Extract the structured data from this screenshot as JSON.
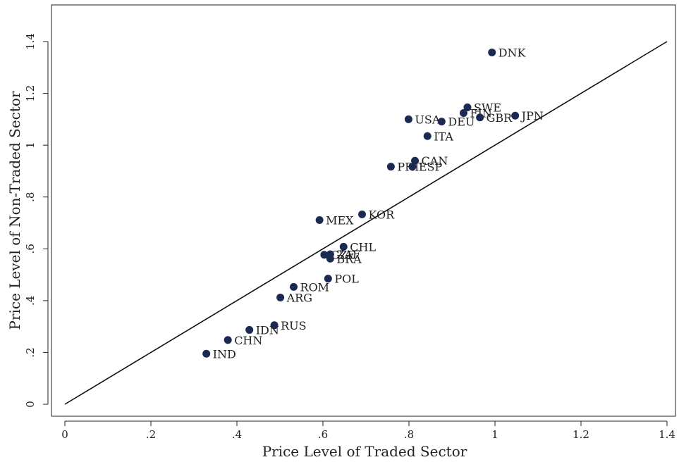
{
  "chart_data": {
    "type": "scatter",
    "title": "",
    "xlabel": "Price Level of Traded Sector",
    "ylabel": "Price Level of Non-Traded Sector",
    "xlim": [
      0,
      1.4
    ],
    "ylim": [
      0,
      1.4
    ],
    "xticks": [
      {
        "value": 0,
        "label": "0"
      },
      {
        "value": 0.2,
        "label": ".2"
      },
      {
        "value": 0.4,
        "label": ".4"
      },
      {
        "value": 0.6,
        "label": ".6"
      },
      {
        "value": 0.8,
        "label": ".8"
      },
      {
        "value": 1.0,
        "label": "1"
      },
      {
        "value": 1.2,
        "label": "1.2"
      },
      {
        "value": 1.4,
        "label": "1.4"
      }
    ],
    "yticks": [
      {
        "value": 0,
        "label": "0"
      },
      {
        "value": 0.2,
        "label": ".2"
      },
      {
        "value": 0.4,
        "label": ".4"
      },
      {
        "value": 0.6,
        "label": ".6"
      },
      {
        "value": 0.8,
        "label": ".8"
      },
      {
        "value": 1.0,
        "label": "1"
      },
      {
        "value": 1.2,
        "label": "1.2"
      },
      {
        "value": 1.4,
        "label": "1.4"
      }
    ],
    "reference_line": {
      "from": [
        0,
        0
      ],
      "to": [
        1.4,
        1.4
      ]
    },
    "grid": false,
    "marker_color": "#1a2a52",
    "points": [
      {
        "label": "DNK",
        "x": 0.993,
        "y": 1.358
      },
      {
        "label": "SWE",
        "x": 0.936,
        "y": 1.146
      },
      {
        "label": "FIN",
        "x": 0.927,
        "y": 1.124
      },
      {
        "label": "GBR",
        "x": 0.965,
        "y": 1.107
      },
      {
        "label": "JPN",
        "x": 1.047,
        "y": 1.114
      },
      {
        "label": "USA",
        "x": 0.799,
        "y": 1.1
      },
      {
        "label": "DEU",
        "x": 0.876,
        "y": 1.091
      },
      {
        "label": "ITA",
        "x": 0.843,
        "y": 1.035
      },
      {
        "label": "CAN",
        "x": 0.814,
        "y": 0.94
      },
      {
        "label": "PRT",
        "x": 0.758,
        "y": 0.917
      },
      {
        "label": "ESP",
        "x": 0.808,
        "y": 0.917
      },
      {
        "label": "KOR",
        "x": 0.691,
        "y": 0.733
      },
      {
        "label": "MEX",
        "x": 0.592,
        "y": 0.711
      },
      {
        "label": "CHL",
        "x": 0.648,
        "y": 0.608
      },
      {
        "label": "CZE",
        "x": 0.603,
        "y": 0.577
      },
      {
        "label": "ZAF",
        "x": 0.617,
        "y": 0.579
      },
      {
        "label": "BRA",
        "x": 0.617,
        "y": 0.562
      },
      {
        "label": "POL",
        "x": 0.612,
        "y": 0.485
      },
      {
        "label": "ROM",
        "x": 0.532,
        "y": 0.453
      },
      {
        "label": "ARG",
        "x": 0.501,
        "y": 0.412
      },
      {
        "label": "RUS",
        "x": 0.487,
        "y": 0.305
      },
      {
        "label": "IDN",
        "x": 0.429,
        "y": 0.287
      },
      {
        "label": "CHN",
        "x": 0.379,
        "y": 0.248
      },
      {
        "label": "IND",
        "x": 0.329,
        "y": 0.195
      }
    ]
  }
}
